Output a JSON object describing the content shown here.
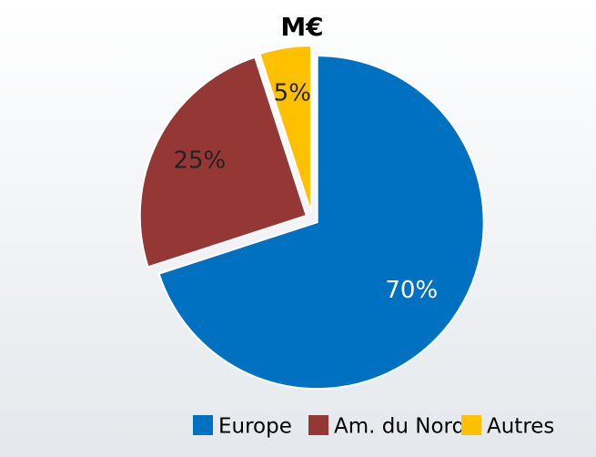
{
  "chart_data": {
    "type": "pie",
    "title": "M€",
    "categories": [
      "Europe",
      "Am. du Nord",
      "Autres"
    ],
    "values": [
      70,
      25,
      5
    ],
    "value_labels": [
      "70%",
      "25%",
      "5%"
    ],
    "colors": [
      "#0070c0",
      "#953735",
      "#ffc000"
    ],
    "legend": "bottom"
  }
}
